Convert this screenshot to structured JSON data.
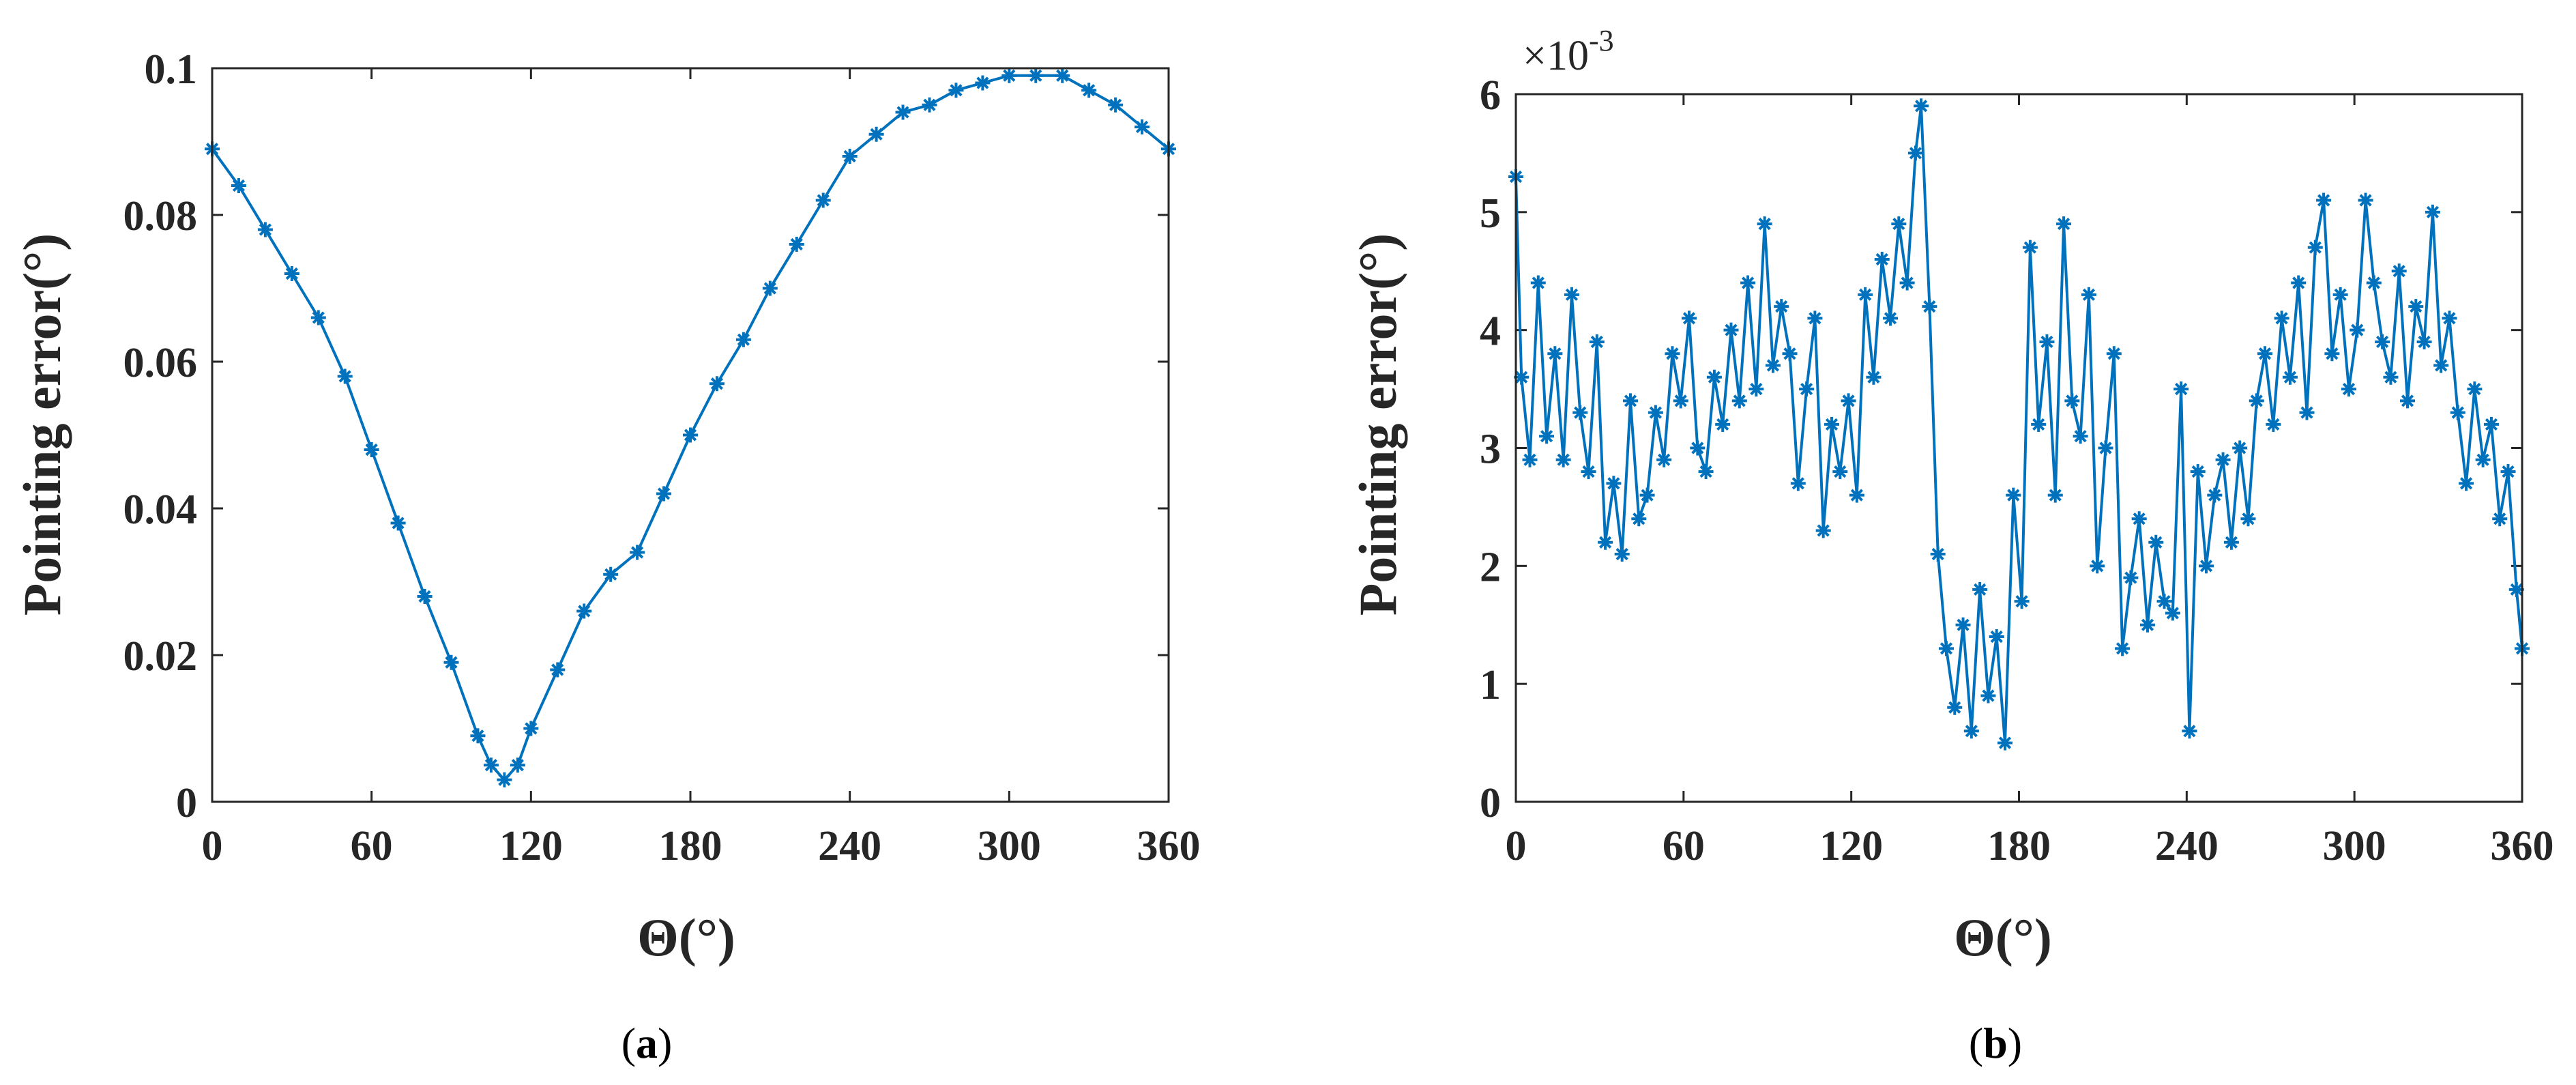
{
  "colors": {
    "series": "#0072BD",
    "axes": "#262626",
    "background": "#ffffff"
  },
  "chart_data": [
    {
      "id": "a",
      "type": "line",
      "panel_label": "(a)",
      "panel_open": "(",
      "panel_letter": "a",
      "panel_close": ")",
      "title": "",
      "xlabel": "Θ(°)",
      "ylabel": "Pointing error(°)",
      "xlim": [
        0,
        360
      ],
      "ylim": [
        0,
        0.1
      ],
      "xticks": [
        "0",
        "60",
        "120",
        "180",
        "240",
        "300",
        "360"
      ],
      "yticks": [
        "0",
        "0.02",
        "0.04",
        "0.06",
        "0.08",
        "0.1"
      ],
      "marker": "asterisk",
      "series": [
        {
          "name": "Pointing error",
          "x": [
            0,
            10,
            20,
            30,
            40,
            50,
            60,
            70,
            80,
            90,
            100,
            105,
            110,
            115,
            120,
            130,
            140,
            150,
            160,
            170,
            180,
            190,
            200,
            210,
            220,
            230,
            240,
            250,
            260,
            270,
            280,
            290,
            300,
            310,
            320,
            330,
            340,
            350,
            360
          ],
          "y": [
            0.089,
            0.084,
            0.078,
            0.072,
            0.066,
            0.058,
            0.048,
            0.038,
            0.028,
            0.019,
            0.009,
            0.005,
            0.003,
            0.005,
            0.01,
            0.018,
            0.026,
            0.031,
            0.034,
            0.042,
            0.05,
            0.057,
            0.063,
            0.07,
            0.076,
            0.082,
            0.088,
            0.091,
            0.094,
            0.095,
            0.097,
            0.098,
            0.099,
            0.099,
            0.099,
            0.097,
            0.095,
            0.092,
            0.089
          ]
        }
      ]
    },
    {
      "id": "b",
      "type": "line",
      "panel_label": "(b)",
      "panel_open": "(",
      "panel_letter": "b",
      "panel_close": ")",
      "title": "",
      "xlabel": "Θ(°)",
      "ylabel": "Pointing error(°)",
      "y_multiplier_base": "×10",
      "y_multiplier_exp": "-3",
      "xlim": [
        0,
        360
      ],
      "ylim": [
        0,
        6
      ],
      "xticks": [
        "0",
        "60",
        "120",
        "180",
        "240",
        "300",
        "360"
      ],
      "yticks": [
        "0",
        "1",
        "2",
        "3",
        "4",
        "5",
        "6"
      ],
      "marker": "asterisk",
      "series": [
        {
          "name": "Pointing error",
          "x": [
            0,
            2,
            5,
            8,
            11,
            14,
            17,
            20,
            23,
            26,
            29,
            32,
            35,
            38,
            41,
            44,
            47,
            50,
            53,
            56,
            59,
            62,
            65,
            68,
            71,
            74,
            77,
            80,
            83,
            86,
            89,
            92,
            95,
            98,
            101,
            104,
            107,
            110,
            113,
            116,
            119,
            122,
            125,
            128,
            131,
            134,
            137,
            140,
            143,
            145,
            148,
            151,
            154,
            157,
            160,
            163,
            166,
            169,
            172,
            175,
            178,
            181,
            184,
            187,
            190,
            193,
            196,
            199,
            202,
            205,
            208,
            211,
            214,
            217,
            220,
            223,
            226,
            229,
            232,
            235,
            238,
            241,
            244,
            247,
            250,
            253,
            256,
            259,
            262,
            265,
            268,
            271,
            274,
            277,
            280,
            283,
            286,
            289,
            292,
            295,
            298,
            301,
            304,
            307,
            310,
            313,
            316,
            319,
            322,
            325,
            328,
            331,
            334,
            337,
            340,
            343,
            346,
            349,
            352,
            355,
            358,
            360
          ],
          "y": [
            5.3,
            3.6,
            2.9,
            4.4,
            3.1,
            3.8,
            2.9,
            4.3,
            3.3,
            2.8,
            3.9,
            2.2,
            2.7,
            2.1,
            3.4,
            2.4,
            2.6,
            3.3,
            2.9,
            3.8,
            3.4,
            4.1,
            3.0,
            2.8,
            3.6,
            3.2,
            4.0,
            3.4,
            4.4,
            3.5,
            4.9,
            3.7,
            4.2,
            3.8,
            2.7,
            3.5,
            4.1,
            2.3,
            3.2,
            2.8,
            3.4,
            2.6,
            4.3,
            3.6,
            4.6,
            4.1,
            4.9,
            4.4,
            5.5,
            5.9,
            4.2,
            2.1,
            1.3,
            0.8,
            1.5,
            0.6,
            1.8,
            0.9,
            1.4,
            0.5,
            2.6,
            1.7,
            4.7,
            3.2,
            3.9,
            2.6,
            4.9,
            3.4,
            3.1,
            4.3,
            2.0,
            3.0,
            3.8,
            1.3,
            1.9,
            2.4,
            1.5,
            2.2,
            1.7,
            1.6,
            3.5,
            0.6,
            2.8,
            2.0,
            2.6,
            2.9,
            2.2,
            3.0,
            2.4,
            3.4,
            3.8,
            3.2,
            4.1,
            3.6,
            4.4,
            3.3,
            4.7,
            5.1,
            3.8,
            4.3,
            3.5,
            4.0,
            5.1,
            4.4,
            3.9,
            3.6,
            4.5,
            3.4,
            4.2,
            3.9,
            5.0,
            3.7,
            4.1,
            3.3,
            2.7,
            3.5,
            2.9,
            3.2,
            2.4,
            2.8,
            1.8,
            1.3
          ]
        }
      ]
    }
  ]
}
